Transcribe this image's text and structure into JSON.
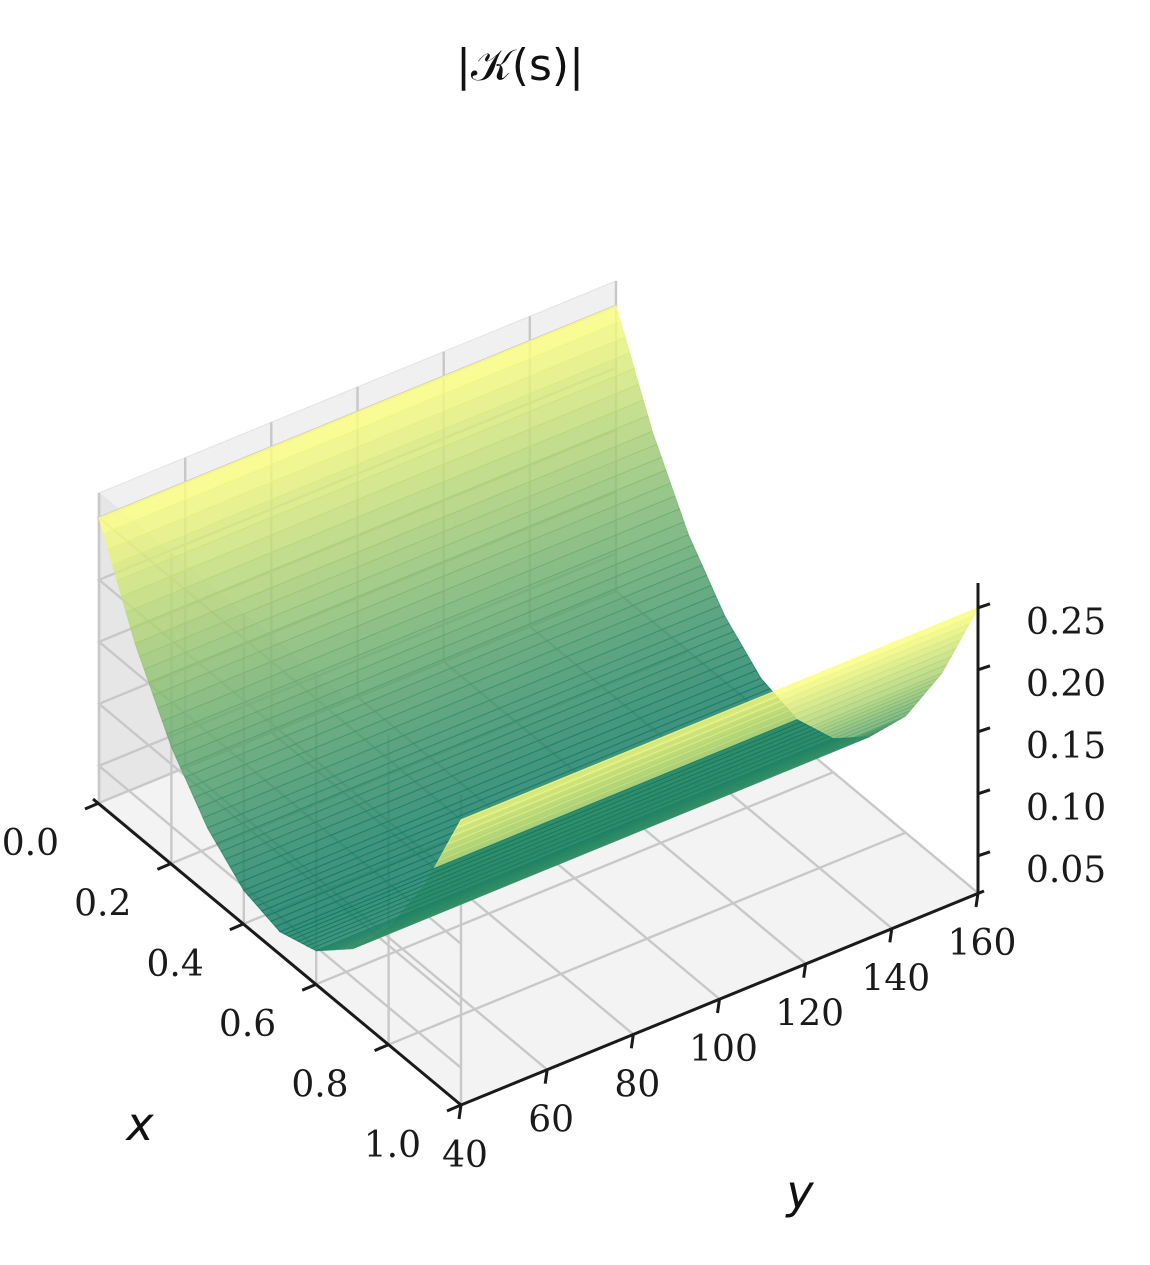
{
  "chart_data": {
    "type": "surface3d",
    "title": "|𝒦(s)|",
    "xlabel": "x",
    "ylabel": "y",
    "zlabel": "",
    "x_ticks": [
      "0.0",
      "0.2",
      "0.4",
      "0.6",
      "0.8",
      "1.0"
    ],
    "y_ticks": [
      "40",
      "60",
      "80",
      "100",
      "120",
      "140",
      "160"
    ],
    "z_ticks": [
      "0.05",
      "0.10",
      "0.15",
      "0.20",
      "0.25"
    ],
    "xlim": [
      0.0,
      1.0
    ],
    "ylim": [
      40,
      160
    ],
    "zlim": [
      0.02,
      0.27
    ],
    "grid": true,
    "colormap": "summer",
    "surface": {
      "description_of_profile": "parabolic in x, constant along y",
      "x": [
        0.0,
        0.1,
        0.2,
        0.3,
        0.4,
        0.5,
        0.6,
        0.7,
        0.8,
        0.9,
        1.0
      ],
      "z": [
        0.25,
        0.173,
        0.114,
        0.073,
        0.047,
        0.038,
        0.047,
        0.073,
        0.114,
        0.173,
        0.25
      ],
      "y_range": [
        40,
        160
      ]
    },
    "colors": {
      "pane_back": "#f0f0f0",
      "pane_side": "#e6e6e6",
      "pane_floor": "#f3f3f3",
      "grid": "#c8c8c8",
      "axis": "#1a1a1a",
      "low": "#107a63",
      "high": "#ffff80"
    }
  }
}
